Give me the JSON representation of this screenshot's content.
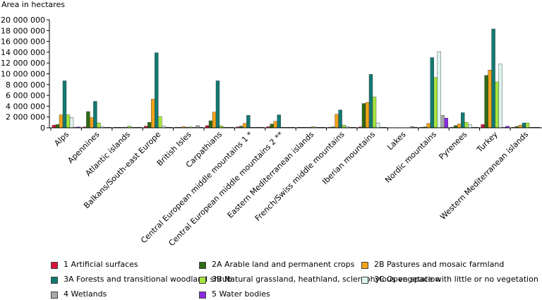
{
  "chart_data": {
    "type": "bar",
    "ylabel": "Area in hectares",
    "ylim": [
      0,
      20000000
    ],
    "yticks": [
      0,
      2000000,
      4000000,
      6000000,
      8000000,
      10000000,
      12000000,
      14000000,
      16000000,
      18000000,
      20000000
    ],
    "ytick_labels": [
      "0",
      "2 000 000",
      "4 000 000",
      "6 000 000",
      "8 000 000",
      "10 000 000",
      "12 000 000",
      "14 000 000",
      "16 000 000",
      "18 000 000",
      "20 000 000"
    ],
    "categories": [
      "Alps",
      "Apennines",
      "Atlantic islands",
      "Balkans/South-east Europe",
      "British Isles",
      "Carpathians",
      "Central European middle mountains 1 *",
      "Central European middle mountains 2 **",
      "Eastern Mediterranean islands",
      "French/Swiss middle mountains",
      "Iberian mountains",
      "Lakes",
      "Nordic mountains",
      "Pyrenees",
      "Turkey",
      "Western Mediterranean islands"
    ],
    "series": [
      {
        "name": "1 Artificial surfaces",
        "color": "#d9133b",
        "values": [
          500000,
          150000,
          20000,
          300000,
          60000,
          400000,
          150000,
          200000,
          30000,
          80000,
          150000,
          0,
          50000,
          80000,
          600000,
          60000
        ]
      },
      {
        "name": "2A Arable land and permanent crops",
        "color": "#2e6b14",
        "values": [
          600000,
          3000000,
          100000,
          1000000,
          100000,
          1300000,
          300000,
          700000,
          100000,
          150000,
          4500000,
          0,
          150000,
          400000,
          9700000,
          250000
        ]
      },
      {
        "name": "2B Pastures and mosaic farmland",
        "color": "#f5a21b",
        "values": [
          2400000,
          1900000,
          100000,
          5300000,
          200000,
          2900000,
          800000,
          1200000,
          80000,
          2500000,
          4700000,
          0,
          800000,
          700000,
          10700000,
          500000
        ]
      },
      {
        "name": "3A Forests and transitional woodland shrub",
        "color": "#117a73",
        "values": [
          8700000,
          4900000,
          100000,
          13900000,
          100000,
          8700000,
          2300000,
          2400000,
          100000,
          3300000,
          9900000,
          0,
          13000000,
          2800000,
          18300000,
          900000
        ]
      },
      {
        "name": "3B Natural grassland, heathland, sclerophylous vegetation",
        "color": "#a7e53e",
        "values": [
          2400000,
          900000,
          300000,
          2100000,
          150000,
          350000,
          60000,
          40000,
          200000,
          500000,
          5700000,
          0,
          9300000,
          1000000,
          8500000,
          900000
        ]
      },
      {
        "name": "3C Open space with little or no vegetation",
        "color": "#ddf4ef",
        "values": [
          1900000,
          150000,
          50000,
          350000,
          50000,
          60000,
          10000,
          10000,
          50000,
          200000,
          900000,
          0,
          14100000,
          600000,
          11800000,
          100000
        ]
      },
      {
        "name": "4 Wetlands",
        "color": "#aaaaaa",
        "values": [
          50000,
          30000,
          10000,
          50000,
          400000,
          50000,
          30000,
          30000,
          10000,
          30000,
          30000,
          250000,
          2300000,
          20000,
          100000,
          20000
        ]
      },
      {
        "name": "5 Water bodies",
        "color": "#8a2be2",
        "values": [
          150000,
          50000,
          10000,
          100000,
          100000,
          80000,
          40000,
          40000,
          10000,
          40000,
          50000,
          100000,
          1800000,
          30000,
          300000,
          20000
        ]
      }
    ],
    "legend_position": "bottom"
  }
}
